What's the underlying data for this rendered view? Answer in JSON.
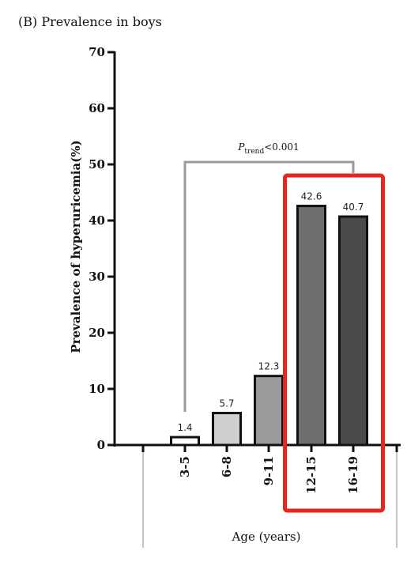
{
  "panel_title": "(B) Prevalence in boys",
  "chart_data": {
    "type": "bar",
    "title": "(B) Prevalence in boys",
    "categories": [
      "3-5",
      "6-8",
      "9-11",
      "12-15",
      "16-19"
    ],
    "values": [
      1.4,
      5.7,
      12.3,
      42.6,
      40.7
    ],
    "data_labels": [
      "1.4",
      "5.7",
      "12.3",
      "42.6",
      "40.7"
    ],
    "bar_colors": [
      "#ffffff",
      "#cfcfcf",
      "#9a9a9a",
      "#6e6e6e",
      "#4a4a4a"
    ],
    "ylabel": "Prevalence of hyperuricemia(%)",
    "xlabel": "Age (years)",
    "ylim": [
      0,
      70
    ],
    "yticks": [
      0,
      10,
      20,
      30,
      40,
      50,
      60,
      70
    ],
    "grid": false,
    "annotation": {
      "p_symbol": "P",
      "p_subscript": "trend",
      "p_text": "<0.001",
      "from_category": "3-5",
      "to_category": "16-19"
    },
    "highlight": {
      "categories": [
        "12-15",
        "16-19"
      ],
      "color": "#e8261f"
    }
  }
}
